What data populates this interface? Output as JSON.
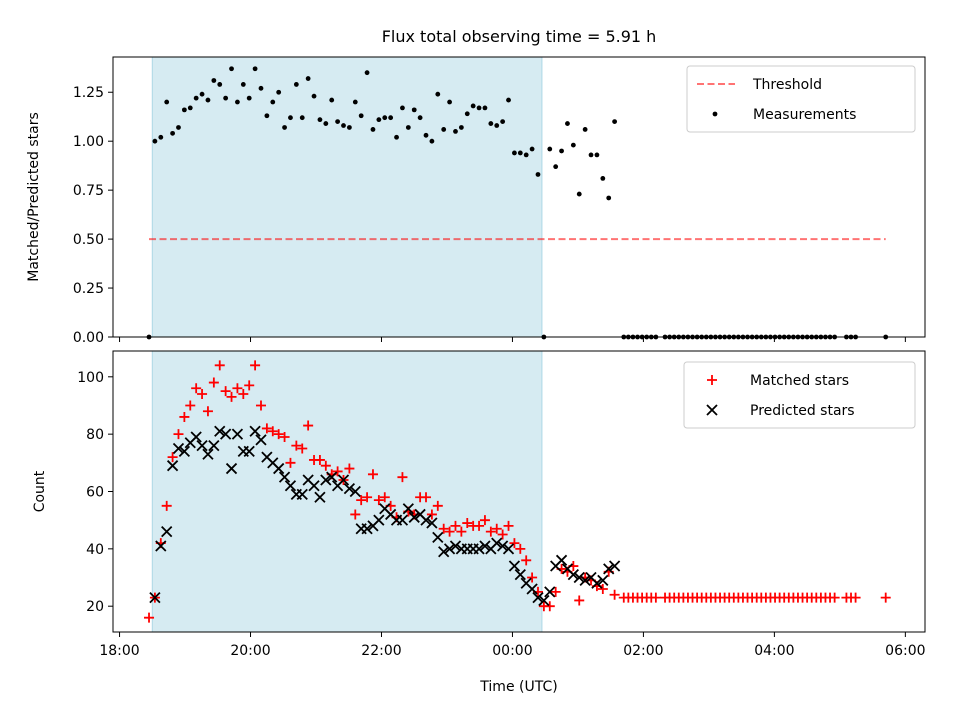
{
  "title": "Flux total observing time = 5.91 h",
  "colors": {
    "shade": "#add8e6",
    "threshold": "#ff0000",
    "measure": "#000000",
    "matched": "#ff0000",
    "predicted": "#000000"
  },
  "chart_data": [
    {
      "type": "scatter",
      "title": "Flux total observing time = 5.91 h",
      "xlabel": "",
      "ylabel": "Matched/Predicted stars",
      "xlim": [
        -0.1,
        12.3
      ],
      "ylim": [
        0,
        1.43
      ],
      "x_ticks": [
        "18:00",
        "20:00",
        "22:00",
        "00:00",
        "02:00",
        "04:00",
        "06:00"
      ],
      "x_tick_hours": [
        0,
        2,
        4,
        6,
        8,
        10,
        12
      ],
      "y_ticks": [
        "0.00",
        "0.25",
        "0.50",
        "0.75",
        "1.00",
        "1.25"
      ],
      "y_tick_values": [
        0,
        0.25,
        0.5,
        0.75,
        1.0,
        1.25
      ],
      "shaded_span_hours": [
        0.5,
        6.45
      ],
      "threshold": {
        "name": "Threshold",
        "value": 0.5,
        "x_range_hours": [
          0.45,
          11.7
        ]
      },
      "legend": [
        "Threshold",
        "Measurements"
      ],
      "legend_position": "upper right",
      "series": [
        {
          "name": "Measurements",
          "x_hours": [
            0.45,
            0.54,
            0.63,
            0.72,
            0.81,
            0.9,
            0.99,
            1.08,
            1.17,
            1.26,
            1.35,
            1.44,
            1.53,
            1.62,
            1.71,
            1.8,
            1.89,
            1.98,
            2.07,
            2.16,
            2.25,
            2.34,
            2.43,
            2.52,
            2.61,
            2.7,
            2.79,
            2.88,
            2.97,
            3.06,
            3.15,
            3.24,
            3.33,
            3.42,
            3.51,
            3.6,
            3.69,
            3.78,
            3.87,
            3.96,
            4.05,
            4.14,
            4.23,
            4.32,
            4.41,
            4.5,
            4.59,
            4.68,
            4.77,
            4.86,
            4.95,
            5.04,
            5.13,
            5.22,
            5.31,
            5.4,
            5.49,
            5.58,
            5.67,
            5.76,
            5.85,
            5.94,
            6.03,
            6.12,
            6.21,
            6.3,
            6.39,
            6.48,
            6.57,
            6.66,
            6.75,
            6.84,
            6.93,
            7.02,
            7.11,
            7.2,
            7.29,
            7.38,
            7.47,
            7.56,
            7.7,
            7.77,
            7.84,
            7.91,
            7.98,
            8.05,
            8.12,
            8.19,
            8.33,
            8.4,
            8.47,
            8.54,
            8.61,
            8.68,
            8.75,
            8.82,
            8.89,
            8.96,
            9.03,
            9.1,
            9.17,
            9.24,
            9.31,
            9.38,
            9.45,
            9.52,
            9.59,
            9.66,
            9.73,
            9.8,
            9.87,
            9.94,
            10.01,
            10.08,
            10.15,
            10.22,
            10.29,
            10.36,
            10.43,
            10.5,
            10.57,
            10.64,
            10.71,
            10.78,
            10.85,
            10.92,
            11.1,
            11.17,
            11.24,
            11.7
          ],
          "y": [
            0.0,
            1.0,
            1.02,
            1.2,
            1.04,
            1.07,
            1.16,
            1.17,
            1.22,
            1.24,
            1.21,
            1.31,
            1.29,
            1.22,
            1.37,
            1.2,
            1.29,
            1.22,
            1.37,
            1.27,
            1.13,
            1.2,
            1.25,
            1.07,
            1.12,
            1.29,
            1.12,
            1.32,
            1.23,
            1.11,
            1.09,
            1.21,
            1.1,
            1.08,
            1.07,
            1.2,
            1.13,
            1.35,
            1.06,
            1.11,
            1.12,
            1.12,
            1.02,
            1.17,
            1.07,
            1.16,
            1.12,
            1.03,
            1.0,
            1.24,
            1.06,
            1.2,
            1.05,
            1.07,
            1.14,
            1.18,
            1.17,
            1.17,
            1.09,
            1.08,
            1.1,
            1.21,
            0.94,
            0.94,
            0.93,
            0.96,
            0.83,
            0.0,
            0.96,
            0.87,
            0.95,
            1.09,
            0.98,
            0.73,
            1.06,
            0.93,
            0.93,
            0.81,
            0.71,
            1.1,
            0.0,
            0.0,
            0.0,
            0.0,
            0.0,
            0.0,
            0.0,
            0.0,
            0.0,
            0.0,
            0.0,
            0.0,
            0.0,
            0.0,
            0.0,
            0.0,
            0.0,
            0.0,
            0.0,
            0.0,
            0.0,
            0.0,
            0.0,
            0.0,
            0.0,
            0.0,
            0.0,
            0.0,
            0.0,
            0.0,
            0.0,
            0.0,
            0.0,
            0.0,
            0.0,
            0.0,
            0.0,
            0.0,
            0.0,
            0.0,
            0.0,
            0.0,
            0.0,
            0.0,
            0.0,
            0.0,
            0.0,
            0.0,
            0.0,
            0.0
          ]
        }
      ]
    },
    {
      "type": "scatter",
      "title": "",
      "xlabel": "Time (UTC)",
      "ylabel": "Count",
      "xlim": [
        -0.1,
        12.3
      ],
      "ylim": [
        11,
        109
      ],
      "x_ticks": [
        "18:00",
        "20:00",
        "22:00",
        "00:00",
        "02:00",
        "04:00",
        "06:00"
      ],
      "x_tick_hours": [
        0,
        2,
        4,
        6,
        8,
        10,
        12
      ],
      "y_ticks": [
        "20",
        "40",
        "60",
        "80",
        "100"
      ],
      "y_tick_values": [
        20,
        40,
        60,
        80,
        100
      ],
      "shaded_span_hours": [
        0.5,
        6.45
      ],
      "legend": [
        "Matched stars",
        "Predicted stars"
      ],
      "legend_position": "upper right",
      "series": [
        {
          "name": "Matched stars",
          "marker": "+",
          "x_hours": [
            0.45,
            0.54,
            0.63,
            0.72,
            0.81,
            0.9,
            0.99,
            1.08,
            1.17,
            1.26,
            1.35,
            1.44,
            1.53,
            1.62,
            1.71,
            1.8,
            1.89,
            1.98,
            2.07,
            2.16,
            2.25,
            2.34,
            2.43,
            2.52,
            2.61,
            2.7,
            2.79,
            2.88,
            2.97,
            3.06,
            3.15,
            3.24,
            3.33,
            3.42,
            3.51,
            3.6,
            3.69,
            3.78,
            3.87,
            3.96,
            4.05,
            4.14,
            4.23,
            4.32,
            4.41,
            4.5,
            4.59,
            4.68,
            4.77,
            4.86,
            4.95,
            5.04,
            5.13,
            5.22,
            5.31,
            5.4,
            5.49,
            5.58,
            5.67,
            5.76,
            5.85,
            5.94,
            6.03,
            6.12,
            6.21,
            6.3,
            6.39,
            6.48,
            6.57,
            6.66,
            6.75,
            6.84,
            6.93,
            7.02,
            7.11,
            7.2,
            7.29,
            7.38,
            7.47,
            7.56,
            7.7,
            7.77,
            7.84,
            7.91,
            7.98,
            8.05,
            8.12,
            8.19,
            8.33,
            8.4,
            8.47,
            8.54,
            8.61,
            8.68,
            8.75,
            8.82,
            8.89,
            8.96,
            9.03,
            9.1,
            9.17,
            9.24,
            9.31,
            9.38,
            9.45,
            9.52,
            9.59,
            9.66,
            9.73,
            9.8,
            9.87,
            9.94,
            10.01,
            10.08,
            10.15,
            10.22,
            10.29,
            10.36,
            10.43,
            10.5,
            10.57,
            10.64,
            10.71,
            10.78,
            10.85,
            10.92,
            11.1,
            11.17,
            11.24,
            11.7
          ],
          "y": [
            16,
            23,
            42,
            55,
            72,
            80,
            86,
            90,
            96,
            94,
            88,
            98,
            104,
            95,
            93,
            96,
            94,
            97,
            104,
            90,
            82,
            81,
            80,
            79,
            70,
            76,
            75,
            83,
            71,
            71,
            69,
            66,
            67,
            64,
            68,
            52,
            57,
            58,
            66,
            57,
            58,
            55,
            51,
            65,
            53,
            52,
            58,
            58,
            52,
            55,
            47,
            46,
            48,
            46,
            49,
            48,
            48,
            50,
            46,
            47,
            45,
            48,
            42,
            40,
            36,
            30,
            25,
            20,
            20,
            25,
            33,
            32,
            34,
            22,
            30,
            29,
            27,
            26,
            32,
            24,
            23,
            23,
            23,
            23,
            23,
            23,
            23,
            23,
            23,
            23,
            23,
            23,
            23,
            23,
            23,
            23,
            23,
            23,
            23,
            23,
            23,
            23,
            23,
            23,
            23,
            23,
            23,
            23,
            23,
            23,
            23,
            23,
            23,
            23,
            23,
            23,
            23,
            23,
            23,
            23,
            23,
            23,
            23,
            23,
            23,
            23,
            23,
            23,
            23,
            23
          ]
        },
        {
          "name": "Predicted stars",
          "marker": "x",
          "x_hours": [
            0.54,
            0.63,
            0.72,
            0.81,
            0.9,
            0.99,
            1.08,
            1.17,
            1.26,
            1.35,
            1.44,
            1.53,
            1.62,
            1.71,
            1.8,
            1.89,
            1.98,
            2.07,
            2.16,
            2.25,
            2.34,
            2.43,
            2.52,
            2.61,
            2.7,
            2.79,
            2.88,
            2.97,
            3.06,
            3.15,
            3.24,
            3.33,
            3.42,
            3.51,
            3.6,
            3.69,
            3.78,
            3.87,
            3.96,
            4.05,
            4.14,
            4.23,
            4.32,
            4.41,
            4.5,
            4.59,
            4.68,
            4.77,
            4.86,
            4.95,
            5.04,
            5.13,
            5.22,
            5.31,
            5.4,
            5.49,
            5.58,
            5.67,
            5.76,
            5.85,
            5.94,
            6.03,
            6.12,
            6.21,
            6.3,
            6.39,
            6.48,
            6.57,
            6.66,
            6.75,
            6.84,
            6.93,
            7.02,
            7.11,
            7.2,
            7.29,
            7.38,
            7.47,
            7.56
          ],
          "y": [
            23,
            41,
            46,
            69,
            75,
            74,
            77,
            79,
            76,
            73,
            76,
            81,
            80,
            68,
            80,
            74,
            74,
            81,
            78,
            72,
            70,
            68,
            65,
            62,
            59,
            59,
            64,
            62,
            58,
            64,
            65,
            62,
            64,
            61,
            60,
            47,
            47,
            48,
            50,
            54,
            52,
            50,
            50,
            54,
            51,
            52,
            50,
            49,
            44,
            39,
            40,
            41,
            40,
            40,
            40,
            40,
            41,
            40,
            42,
            41,
            40,
            34,
            31,
            28,
            26,
            23,
            22,
            25,
            34,
            36,
            33,
            31,
            30,
            29,
            30,
            28,
            29,
            33,
            34
          ]
        }
      ]
    }
  ]
}
